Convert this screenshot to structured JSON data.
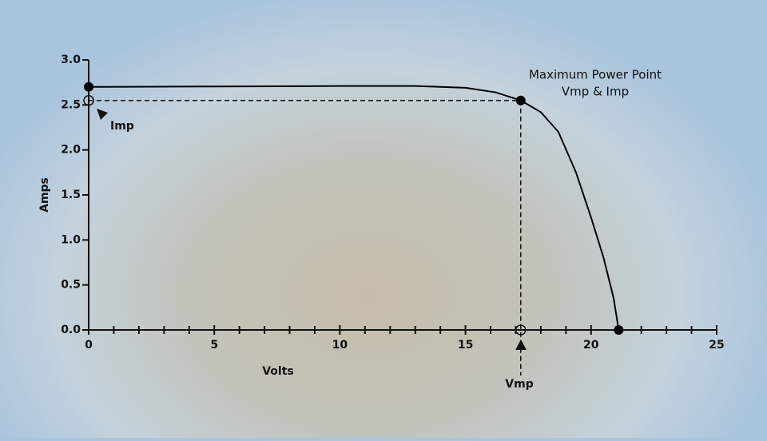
{
  "chart_data": {
    "type": "line",
    "xlabel": "Volts",
    "ylabel": "Amps",
    "xlim": [
      0,
      25
    ],
    "ylim": [
      0,
      3
    ],
    "xticks": [
      0,
      5,
      10,
      15,
      20,
      25
    ],
    "xminorticks": [
      1,
      2,
      3,
      4,
      6,
      7,
      8,
      9,
      11,
      12,
      13,
      14,
      16,
      17,
      18,
      19,
      21,
      22,
      23,
      24
    ],
    "yticks": [
      {
        "value": 0,
        "label": "0.0"
      },
      0.5,
      {
        "value": 1,
        "label": "1.0"
      },
      1.5,
      {
        "value": 2,
        "label": "2.0"
      },
      2.5,
      {
        "value": 3,
        "label": "3.0"
      }
    ],
    "color": "#000000",
    "x": [
      0,
      5,
      10,
      13,
      15,
      16.2,
      17.2,
      18,
      18.7,
      19.4,
      20,
      20.5,
      20.9,
      21.1
    ],
    "values": [
      2.7,
      2.705,
      2.71,
      2.71,
      2.69,
      2.64,
      2.55,
      2.42,
      2.2,
      1.75,
      1.25,
      0.8,
      0.35,
      0
    ],
    "mpp": {
      "x": 17.2,
      "y": 2.55
    },
    "annotations": {
      "mpp_title": "Maximum Power Point",
      "mpp_sub": "Vmp & Imp",
      "imp": "Imp",
      "vmp": "Vmp"
    }
  }
}
